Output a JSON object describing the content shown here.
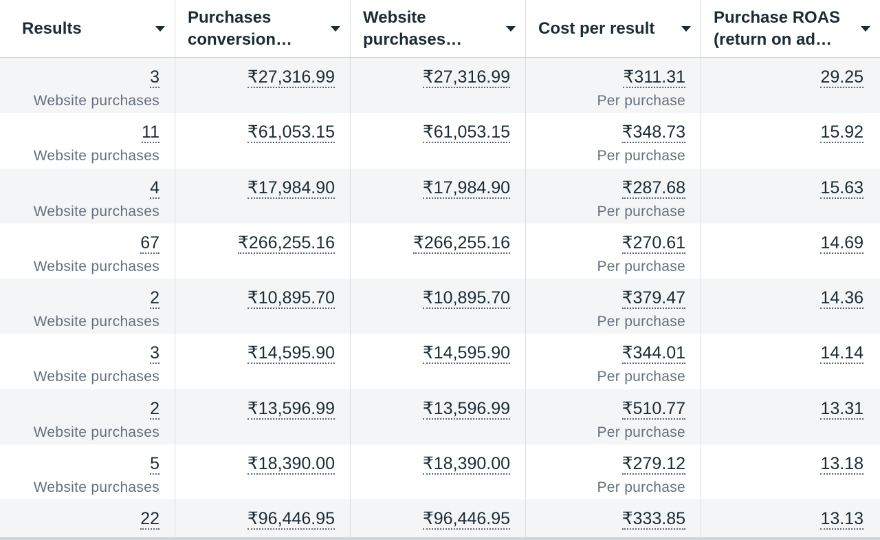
{
  "columns": [
    {
      "label_line1": "Results",
      "label_line2": ""
    },
    {
      "label_line1": "Purchases",
      "label_line2": "conversion…"
    },
    {
      "label_line1": "Website",
      "label_line2": "purchases…"
    },
    {
      "label_line1": "Cost per result",
      "label_line2": ""
    },
    {
      "label_line1": "Purchase ROAS",
      "label_line2": "(return on ad…"
    }
  ],
  "rows": [
    {
      "results": "3",
      "results_sub": "Website purchases",
      "conv_value": "₹27,316.99",
      "website_value": "₹27,316.99",
      "cost": "₹311.31",
      "cost_sub": "Per purchase",
      "roas": "29.25"
    },
    {
      "results": "11",
      "results_sub": "Website purchases",
      "conv_value": "₹61,053.15",
      "website_value": "₹61,053.15",
      "cost": "₹348.73",
      "cost_sub": "Per purchase",
      "roas": "15.92"
    },
    {
      "results": "4",
      "results_sub": "Website purchases",
      "conv_value": "₹17,984.90",
      "website_value": "₹17,984.90",
      "cost": "₹287.68",
      "cost_sub": "Per purchase",
      "roas": "15.63"
    },
    {
      "results": "67",
      "results_sub": "Website purchases",
      "conv_value": "₹266,255.16",
      "website_value": "₹266,255.16",
      "cost": "₹270.61",
      "cost_sub": "Per purchase",
      "roas": "14.69"
    },
    {
      "results": "2",
      "results_sub": "Website purchases",
      "conv_value": "₹10,895.70",
      "website_value": "₹10,895.70",
      "cost": "₹379.47",
      "cost_sub": "Per purchase",
      "roas": "14.36"
    },
    {
      "results": "3",
      "results_sub": "Website purchases",
      "conv_value": "₹14,595.90",
      "website_value": "₹14,595.90",
      "cost": "₹344.01",
      "cost_sub": "Per purchase",
      "roas": "14.14"
    },
    {
      "results": "2",
      "results_sub": "Website purchases",
      "conv_value": "₹13,596.99",
      "website_value": "₹13,596.99",
      "cost": "₹510.77",
      "cost_sub": "Per purchase",
      "roas": "13.31"
    },
    {
      "results": "5",
      "results_sub": "Website purchases",
      "conv_value": "₹18,390.00",
      "website_value": "₹18,390.00",
      "cost": "₹279.12",
      "cost_sub": "Per purchase",
      "roas": "13.18"
    },
    {
      "results": "22",
      "results_sub": "",
      "conv_value": "₹96,446.95",
      "website_value": "₹96,446.95",
      "cost": "₹333.85",
      "cost_sub": "",
      "roas": "13.13"
    }
  ],
  "colors": {
    "row_alt": "#f4f5f7",
    "text": "#1c2b33",
    "subtext": "#65707b",
    "border": "#d8dde2"
  },
  "icons": {
    "sort": "caret-down-icon"
  }
}
